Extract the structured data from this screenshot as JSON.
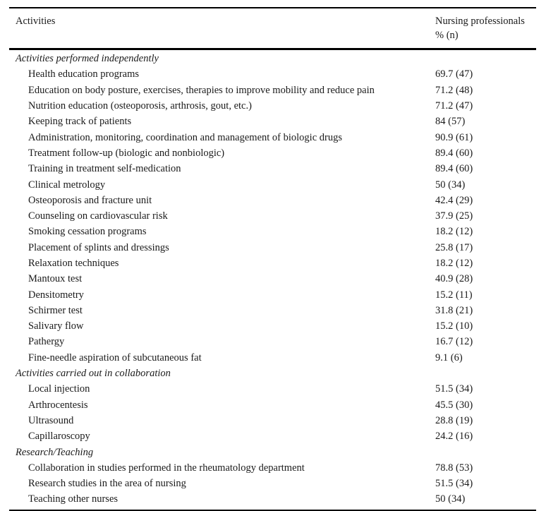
{
  "table": {
    "header": {
      "activities": "Activities",
      "value_line1": "Nursing professionals",
      "value_line2": "% (n)"
    },
    "sections": [
      {
        "title": "Activities performed independently",
        "rows": [
          {
            "label": "Health education programs",
            "value": "69.7 (47)"
          },
          {
            "label": "Education on body posture, exercises, therapies to improve mobility and reduce pain",
            "value": "71.2 (48)"
          },
          {
            "label": "Nutrition education (osteoporosis, arthrosis, gout, etc.)",
            "value": "71.2 (47)"
          },
          {
            "label": "Keeping track of patients",
            "value": "84 (57)"
          },
          {
            "label": "Administration, monitoring, coordination and management of biologic drugs",
            "value": "90.9 (61)"
          },
          {
            "label": "Treatment follow-up (biologic and nonbiologic)",
            "value": "89.4 (60)"
          },
          {
            "label": "Training in treatment self-medication",
            "value": "89.4 (60)"
          },
          {
            "label": "Clinical metrology",
            "value": "50 (34)"
          },
          {
            "label": "Osteoporosis and fracture unit",
            "value": "42.4 (29)"
          },
          {
            "label": "Counseling on cardiovascular risk",
            "value": "37.9 (25)"
          },
          {
            "label": "Smoking cessation programs",
            "value": "18.2 (12)"
          },
          {
            "label": "Placement of splints and dressings",
            "value": "25.8 (17)"
          },
          {
            "label": "Relaxation techniques",
            "value": "18.2 (12)"
          },
          {
            "label": "Mantoux test",
            "value": "40.9 (28)"
          },
          {
            "label": "Densitometry",
            "value": "15.2 (11)"
          },
          {
            "label": "Schirmer test",
            "value": "31.8 (21)"
          },
          {
            "label": "Salivary flow",
            "value": "15.2 (10)"
          },
          {
            "label": "Pathergy",
            "value": "16.7 (12)"
          },
          {
            "label": "Fine-needle aspiration of subcutaneous fat",
            "value": "9.1 (6)"
          }
        ]
      },
      {
        "title": "Activities carried out in collaboration",
        "rows": [
          {
            "label": "Local injection",
            "value": "51.5 (34)"
          },
          {
            "label": "Arthrocentesis",
            "value": "45.5 (30)"
          },
          {
            "label": "Ultrasound",
            "value": "28.8 (19)"
          },
          {
            "label": "Capillaroscopy",
            "value": "24.2 (16)"
          }
        ]
      },
      {
        "title": "Research/Teaching",
        "rows": [
          {
            "label": "Collaboration in studies performed in the rheumatology department",
            "value": "78.8 (53)"
          },
          {
            "label": "Research studies in the area of nursing",
            "value": "51.5 (34)"
          },
          {
            "label": "Teaching other nurses",
            "value": "50 (34)"
          }
        ]
      }
    ]
  }
}
